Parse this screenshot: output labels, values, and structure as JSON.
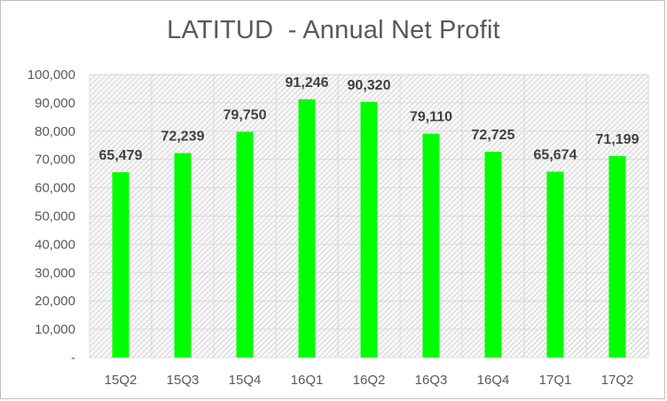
{
  "chart_data": {
    "type": "bar",
    "title": "LATITUD  - Annual Net Profit",
    "xlabel": "",
    "ylabel": "",
    "categories": [
      "15Q2",
      "15Q3",
      "15Q4",
      "16Q1",
      "16Q2",
      "16Q3",
      "16Q4",
      "17Q1",
      "17Q2"
    ],
    "values": [
      65479,
      72239,
      79750,
      91246,
      90320,
      79110,
      72725,
      65674,
      71199
    ],
    "value_labels": [
      "65,479",
      "72,239",
      "79,750",
      "91,246",
      "90,320",
      "79,110",
      "72,725",
      "65,674",
      "71,199"
    ],
    "ylim": [
      0,
      100000
    ],
    "y_ticks": [
      0,
      10000,
      20000,
      30000,
      40000,
      50000,
      60000,
      70000,
      80000,
      90000,
      100000
    ],
    "y_tick_labels": [
      "-",
      "10,000",
      "20,000",
      "30,000",
      "40,000",
      "50,000",
      "60,000",
      "70,000",
      "80,000",
      "90,000",
      "100,000"
    ],
    "grid": true,
    "legend": "none",
    "colors": {
      "bar": "#00ff00",
      "plot_background_hatch": "#d9d9d9",
      "gridline": "#d9d9d9",
      "text": "#595959",
      "data_label": "#404040"
    }
  }
}
